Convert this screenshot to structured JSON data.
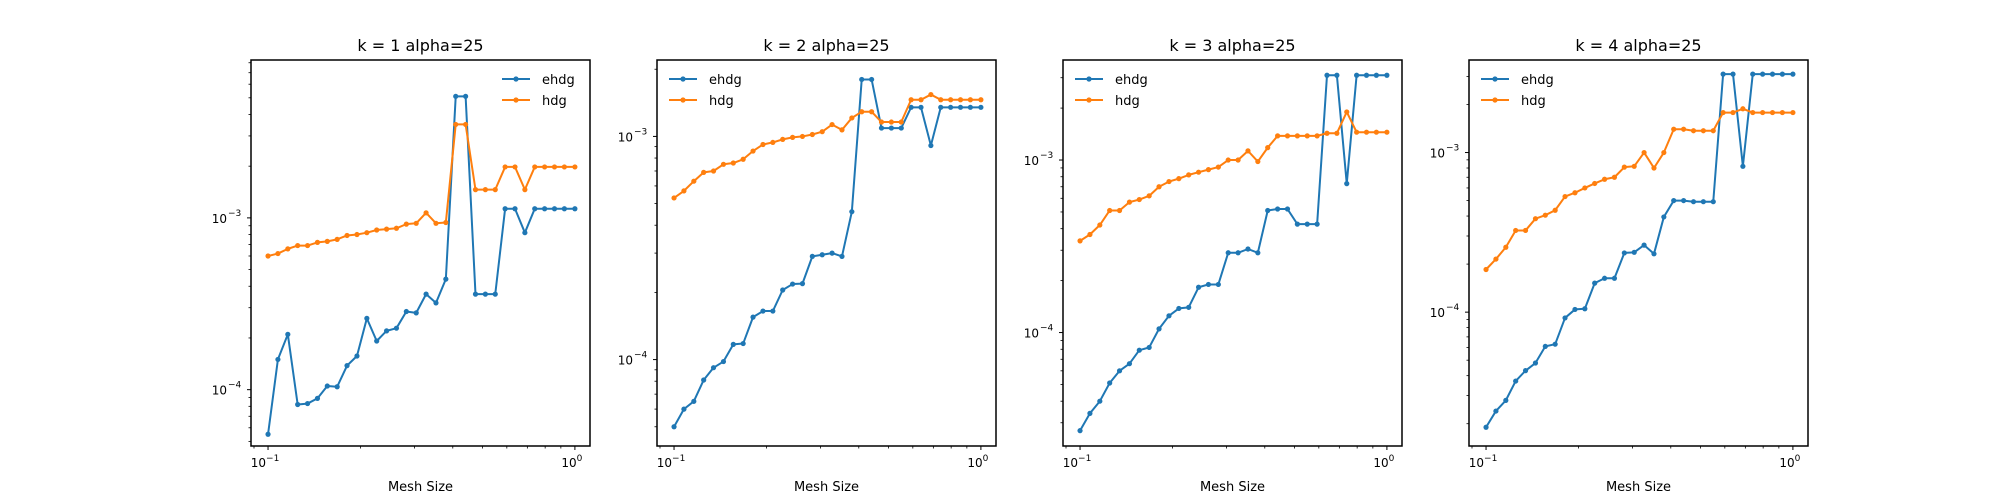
{
  "colors": {
    "ehdg": "#1f77b4",
    "hdg": "#ff7f0e",
    "frame": "#000000",
    "background": "#ffffff"
  },
  "chart_data": [
    {
      "type": "line",
      "title": "k = 1 alpha=25",
      "xlabel": "Mesh Size",
      "ylabel": "",
      "xscale": "log",
      "yscale": "log",
      "xlim": [
        0.088,
        1.12
      ],
      "ylim": [
        4.7e-05,
        0.0083
      ],
      "grid": false,
      "legend": "top-right",
      "xticks": [
        {
          "value": 0.1,
          "base": "10",
          "exp": "−1"
        },
        {
          "value": 1,
          "base": "10",
          "exp": "0"
        }
      ],
      "yticks": [
        {
          "value": 0.0001,
          "base": "10",
          "exp": "−4"
        },
        {
          "value": 0.001,
          "base": "10",
          "exp": "−3"
        }
      ],
      "x": [
        0.1,
        0.1077,
        0.116,
        0.1249,
        0.1345,
        0.1449,
        0.156,
        0.168,
        0.1809,
        0.1949,
        0.2099,
        0.226,
        0.2434,
        0.2621,
        0.2823,
        0.304,
        0.3274,
        0.3526,
        0.3797,
        0.4089,
        0.4404,
        0.4743,
        0.5108,
        0.5501,
        0.5924,
        0.638,
        0.6871,
        0.7399,
        0.7968,
        0.8581,
        0.9241,
        1.0
      ],
      "series": [
        {
          "name": "ehdg",
          "values": [
            5.5e-05,
            0.00015,
            0.00021,
            8.2e-05,
            8.3e-05,
            8.9e-05,
            0.000105,
            0.000104,
            0.000138,
            0.000157,
            0.00026,
            0.000192,
            0.00022,
            0.000228,
            0.000285,
            0.00028,
            0.00036,
            0.00032,
            0.00044,
            0.0051,
            0.0051,
            0.00036,
            0.00036,
            0.00036,
            0.00113,
            0.00113,
            0.00082,
            0.00113,
            0.00113,
            0.00113,
            0.00113,
            0.00113
          ]
        },
        {
          "name": "hdg",
          "values": [
            0.0006,
            0.00062,
            0.00066,
            0.00069,
            0.00069,
            0.00072,
            0.00073,
            0.00075,
            0.00079,
            0.0008,
            0.00082,
            0.00085,
            0.00086,
            0.00087,
            0.00092,
            0.00093,
            0.00107,
            0.00093,
            0.00094,
            0.0035,
            0.0035,
            0.00146,
            0.00146,
            0.00146,
            0.00198,
            0.00198,
            0.00146,
            0.00198,
            0.00198,
            0.00198,
            0.00198,
            0.00198
          ]
        }
      ]
    },
    {
      "type": "line",
      "title": "k = 2 alpha=25",
      "xlabel": "Mesh Size",
      "ylabel": "",
      "xscale": "log",
      "yscale": "log",
      "xlim": [
        0.088,
        1.12
      ],
      "ylim": [
        4.1e-05,
        0.0022
      ],
      "grid": false,
      "legend": "top-left",
      "xticks": [
        {
          "value": 0.1,
          "base": "10",
          "exp": "−1"
        },
        {
          "value": 1,
          "base": "10",
          "exp": "0"
        }
      ],
      "yticks": [
        {
          "value": 0.0001,
          "base": "10",
          "exp": "−4"
        },
        {
          "value": 0.001,
          "base": "10",
          "exp": "−3"
        }
      ],
      "x": [
        0.1,
        0.1077,
        0.116,
        0.1249,
        0.1345,
        0.1449,
        0.156,
        0.168,
        0.1809,
        0.1949,
        0.2099,
        0.226,
        0.2434,
        0.2621,
        0.2823,
        0.304,
        0.3274,
        0.3526,
        0.3797,
        0.4089,
        0.4404,
        0.4743,
        0.5108,
        0.5501,
        0.5924,
        0.638,
        0.6871,
        0.7399,
        0.7968,
        0.8581,
        0.9241,
        1.0
      ],
      "series": [
        {
          "name": "ehdg",
          "values": [
            5e-05,
            6e-05,
            6.5e-05,
            8.1e-05,
            9.2e-05,
            9.8e-05,
            0.000117,
            0.000118,
            0.000155,
            0.000165,
            0.000165,
            0.000205,
            0.000218,
            0.000219,
            0.00029,
            0.000295,
            0.0003,
            0.00029,
            0.00046,
            0.0018,
            0.0018,
            0.00109,
            0.00109,
            0.00109,
            0.00135,
            0.00135,
            0.00091,
            0.00135,
            0.00135,
            0.00135,
            0.00135,
            0.00135
          ]
        },
        {
          "name": "hdg",
          "values": [
            0.00053,
            0.00057,
            0.00063,
            0.00069,
            0.0007,
            0.00075,
            0.00076,
            0.00079,
            0.00086,
            0.00092,
            0.00094,
            0.00097,
            0.00099,
            0.001,
            0.00102,
            0.00105,
            0.00113,
            0.00107,
            0.00121,
            0.00129,
            0.00129,
            0.00116,
            0.00116,
            0.00116,
            0.00146,
            0.00146,
            0.00154,
            0.00146,
            0.00146,
            0.00146,
            0.00146,
            0.00146
          ]
        }
      ]
    },
    {
      "type": "line",
      "title": "k = 3 alpha=25",
      "xlabel": "Mesh Size",
      "ylabel": "",
      "xscale": "log",
      "yscale": "log",
      "xlim": [
        0.088,
        1.12
      ],
      "ylim": [
        2.2e-05,
        0.0038
      ],
      "grid": false,
      "legend": "top-left",
      "xticks": [
        {
          "value": 0.1,
          "base": "10",
          "exp": "−1"
        },
        {
          "value": 1,
          "base": "10",
          "exp": "0"
        }
      ],
      "yticks": [
        {
          "value": 0.0001,
          "base": "10",
          "exp": "−4"
        },
        {
          "value": 0.001,
          "base": "10",
          "exp": "−3"
        }
      ],
      "x": [
        0.1,
        0.1077,
        0.116,
        0.1249,
        0.1345,
        0.1449,
        0.156,
        0.168,
        0.1809,
        0.1949,
        0.2099,
        0.226,
        0.2434,
        0.2621,
        0.2823,
        0.304,
        0.3274,
        0.3526,
        0.3797,
        0.4089,
        0.4404,
        0.4743,
        0.5108,
        0.5501,
        0.5924,
        0.638,
        0.6871,
        0.7399,
        0.7968,
        0.8581,
        0.9241,
        1.0
      ],
      "series": [
        {
          "name": "ehdg",
          "values": [
            2.7e-05,
            3.4e-05,
            4e-05,
            5.1e-05,
            6e-05,
            6.6e-05,
            7.9e-05,
            8.2e-05,
            0.000105,
            0.000125,
            0.000138,
            0.00014,
            0.000183,
            0.00019,
            0.00019,
            0.00029,
            0.00029,
            0.000305,
            0.00029,
            0.00051,
            0.00052,
            0.00052,
            0.000425,
            0.000425,
            0.000425,
            0.0031,
            0.0031,
            0.00073,
            0.0031,
            0.0031,
            0.0031,
            0.0031
          ]
        },
        {
          "name": "hdg",
          "values": [
            0.00034,
            0.00037,
            0.00042,
            0.00051,
            0.00051,
            0.00057,
            0.00059,
            0.00062,
            0.0007,
            0.00075,
            0.00078,
            0.00082,
            0.00085,
            0.00088,
            0.00091,
            0.001,
            0.001,
            0.00113,
            0.00098,
            0.00118,
            0.00138,
            0.00138,
            0.00138,
            0.00138,
            0.00138,
            0.00143,
            0.00143,
            0.0019,
            0.00145,
            0.00145,
            0.00145,
            0.00145
          ]
        }
      ]
    },
    {
      "type": "line",
      "title": "k = 4 alpha=25",
      "xlabel": "Mesh Size",
      "ylabel": "",
      "xscale": "log",
      "yscale": "log",
      "xlim": [
        0.088,
        1.12
      ],
      "ylim": [
        1.45e-05,
        0.0038
      ],
      "grid": false,
      "legend": "top-left",
      "xticks": [
        {
          "value": 0.1,
          "base": "10",
          "exp": "−1"
        },
        {
          "value": 1,
          "base": "10",
          "exp": "0"
        }
      ],
      "yticks": [
        {
          "value": 0.0001,
          "base": "10",
          "exp": "−4"
        },
        {
          "value": 0.001,
          "base": "10",
          "exp": "−3"
        }
      ],
      "x": [
        0.1,
        0.1077,
        0.116,
        0.1249,
        0.1345,
        0.1449,
        0.156,
        0.168,
        0.1809,
        0.1949,
        0.2099,
        0.226,
        0.2434,
        0.2621,
        0.2823,
        0.304,
        0.3274,
        0.3526,
        0.3797,
        0.4089,
        0.4404,
        0.4743,
        0.5108,
        0.5501,
        0.5924,
        0.638,
        0.6871,
        0.7399,
        0.7968,
        0.8581,
        0.9241,
        1.0
      ],
      "series": [
        {
          "name": "ehdg",
          "values": [
            1.9e-05,
            2.4e-05,
            2.8e-05,
            3.7e-05,
            4.3e-05,
            4.8e-05,
            6.1e-05,
            6.3e-05,
            9.2e-05,
            0.000104,
            0.000105,
            0.000152,
            0.000163,
            0.000163,
            0.000235,
            0.000237,
            0.000263,
            0.000232,
            0.000395,
            0.0005,
            0.0005,
            0.000492,
            0.000492,
            0.000492,
            0.0031,
            0.0031,
            0.00082,
            0.0031,
            0.0031,
            0.0031,
            0.0031,
            0.0031
          ]
        },
        {
          "name": "hdg",
          "values": [
            0.000185,
            0.000215,
            0.000255,
            0.000325,
            0.000325,
            0.000385,
            0.000405,
            0.000435,
            0.00053,
            0.00056,
            0.0006,
            0.00064,
            0.00068,
            0.0007,
            0.00081,
            0.00082,
            0.001,
            0.0008,
            0.001,
            0.0014,
            0.0014,
            0.00137,
            0.00137,
            0.00137,
            0.00178,
            0.00178,
            0.00188,
            0.00178,
            0.00178,
            0.00178,
            0.00178,
            0.00178
          ]
        }
      ]
    }
  ]
}
